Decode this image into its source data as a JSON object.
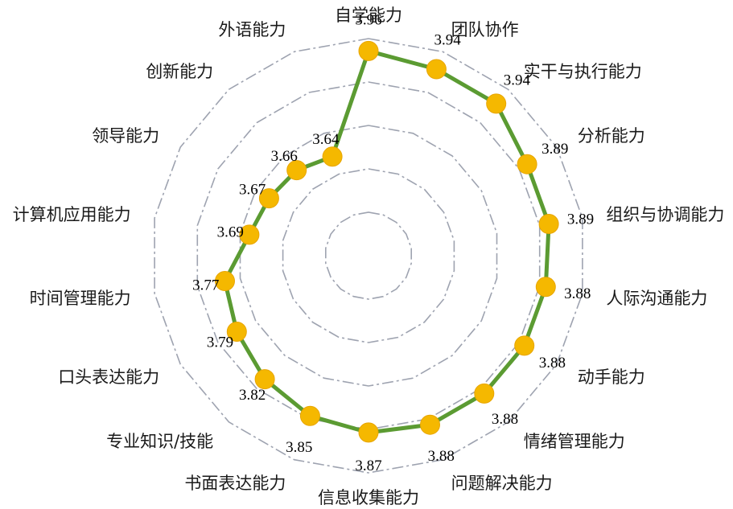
{
  "chart_data": {
    "type": "radar",
    "categories": [
      "自学能力",
      "团队协作",
      "实干与执行能力",
      "分析能力",
      "组织与协调能力",
      "人际沟通能力",
      "动手能力",
      "情绪管理能力",
      "问题解决能力",
      "信息收集能力",
      "书面表达能力",
      "专业知识/技能",
      "口头表达能力",
      "时间管理能力",
      "计算机应用能力",
      "领导能力",
      "创新能力",
      "外语能力"
    ],
    "values": [
      3.96,
      3.94,
      3.94,
      3.89,
      3.89,
      3.88,
      3.88,
      3.88,
      3.88,
      3.87,
      3.85,
      3.82,
      3.79,
      3.77,
      3.69,
      3.67,
      3.66,
      3.64
    ],
    "value_labels": [
      "3.96",
      "3.94",
      "3.94",
      "3.89",
      "3.89",
      "3.88",
      "3.88",
      "3.88",
      "3.88",
      "3.87",
      "3.85",
      "3.82",
      "3.79",
      "3.77",
      "3.69",
      "3.67",
      "3.66",
      "3.64"
    ],
    "rlim": [
      3.3,
      4.0
    ],
    "grid": true,
    "legend": false,
    "colors": {
      "line": "#5b9b32",
      "marker": "#f5b800",
      "marker_stroke": "#e8a500",
      "grid": "#9ea3b0"
    }
  }
}
